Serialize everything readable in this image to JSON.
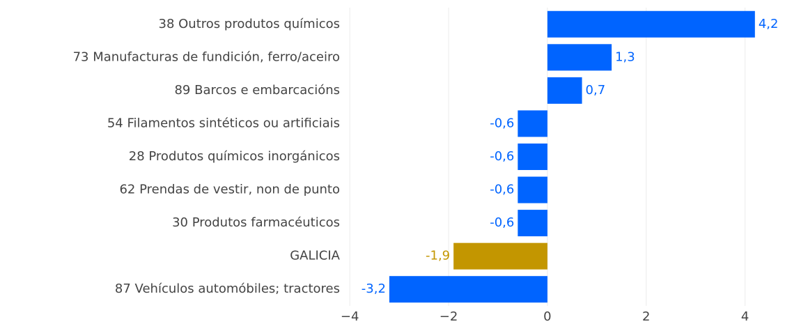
{
  "chart_data": {
    "type": "bar",
    "orientation": "horizontal",
    "categories": [
      "38 Outros produtos químicos",
      "73 Manufacturas de fundición, ferro/aceiro",
      "89 Barcos e embarcacións",
      "54 Filamentos sintéticos ou artificiais",
      "28 Produtos químicos inorgánicos",
      "62 Prendas de vestir, non de punto",
      "30 Produtos farmacéuticos",
      "GALICIA",
      "87 Vehículos automóbiles; tractores"
    ],
    "values": [
      4.2,
      1.3,
      0.7,
      -0.6,
      -0.6,
      -0.6,
      -0.6,
      -1.9,
      -3.2
    ],
    "value_labels": [
      "4,2",
      "1,3",
      "0,7",
      "-0,6",
      "-0,6",
      "-0,6",
      "-0,6",
      "-1,9",
      "-3,2"
    ],
    "colors": [
      "#0064ff",
      "#0064ff",
      "#0064ff",
      "#0064ff",
      "#0064ff",
      "#0064ff",
      "#0064ff",
      "#c39600",
      "#0064ff"
    ],
    "xlim": [
      -4.2,
      4.4
    ],
    "xticks": [
      {
        "value": -4,
        "label": "−4"
      },
      {
        "value": -2,
        "label": "−2"
      },
      0,
      2,
      4
    ],
    "grid": true
  }
}
